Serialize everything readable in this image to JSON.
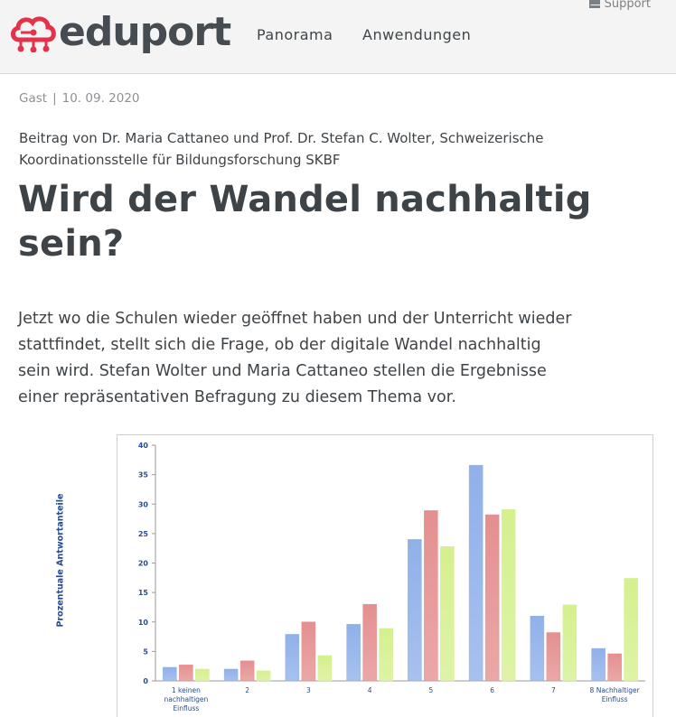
{
  "header": {
    "logo_text": "eduport",
    "nav": [
      "Panorama",
      "Anwendungen"
    ],
    "support_label": "Support"
  },
  "article": {
    "author": "Gast",
    "date": "10. 09. 2020",
    "byline": "Beitrag von Dr. Maria Cattaneo und Prof. Dr. Stefan C. Wolter, Schweizerische Koordinationsstelle für Bildungsforschung SKBF",
    "title": "Wird der Wandel nachhaltig sein?",
    "lead": "Jetzt wo die Schulen wieder geöffnet haben und der Unterricht wieder stattfindet, stellt sich die Frage, ob der digitale Wandel nachhaltig sein wird. Stefan Wolter und Maria Cattaneo stellen die Ergebnisse einer repräsentativen Befragung zu diesem Thema vor."
  },
  "chart_data": {
    "type": "bar",
    "ylabel": "Prozentuale Antwortanteile",
    "ylim": [
      0,
      40
    ],
    "yticks": [
      0,
      5,
      10,
      15,
      20,
      25,
      30,
      35,
      40
    ],
    "categories": [
      [
        "1 keinen",
        "nachhaltigen",
        "Einfluss"
      ],
      [
        "2"
      ],
      [
        "3"
      ],
      [
        "4"
      ],
      [
        "5"
      ],
      [
        "6"
      ],
      [
        "7"
      ],
      [
        "8 Nachhaltiger",
        "Einfluss"
      ]
    ],
    "series": [
      {
        "color": "#8fb0ea",
        "values": [
          2.3,
          2.0,
          7.9,
          9.6,
          24.0,
          36.6,
          11.0,
          5.5
        ]
      },
      {
        "color": "#e58f8f",
        "values": [
          2.7,
          3.4,
          10.0,
          13.0,
          28.9,
          28.2,
          8.2,
          4.6
        ]
      },
      {
        "color": "#d5f08e",
        "values": [
          2.0,
          1.7,
          4.3,
          8.9,
          22.8,
          29.1,
          12.9,
          17.4
        ]
      }
    ]
  }
}
